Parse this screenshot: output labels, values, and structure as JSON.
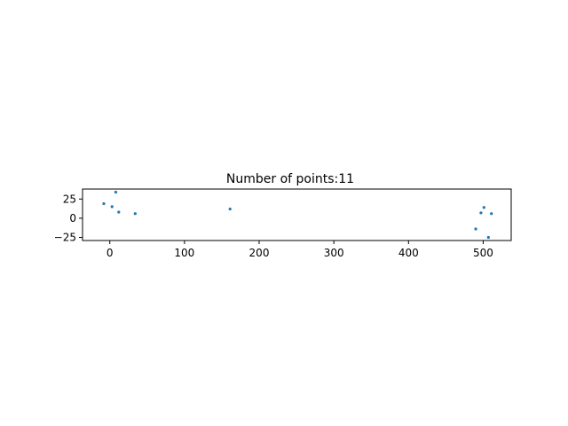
{
  "chart_data": {
    "type": "scatter",
    "title": "Number of points:11",
    "xlabel": "",
    "ylabel": "",
    "xlim": [
      -36.5,
      537.5
    ],
    "ylim": [
      -29,
      38
    ],
    "xticks": [
      0,
      100,
      200,
      300,
      400,
      500
    ],
    "yticks": [
      -25,
      0,
      25
    ],
    "grid": false,
    "point_color": "#1f77b4",
    "series": [
      {
        "x": [
          -8,
          3,
          8,
          12,
          34,
          161,
          490,
          497,
          501,
          507,
          511
        ],
        "y": [
          19,
          15,
          34,
          8,
          6,
          12,
          -14,
          7,
          14,
          -25,
          6
        ]
      }
    ]
  }
}
